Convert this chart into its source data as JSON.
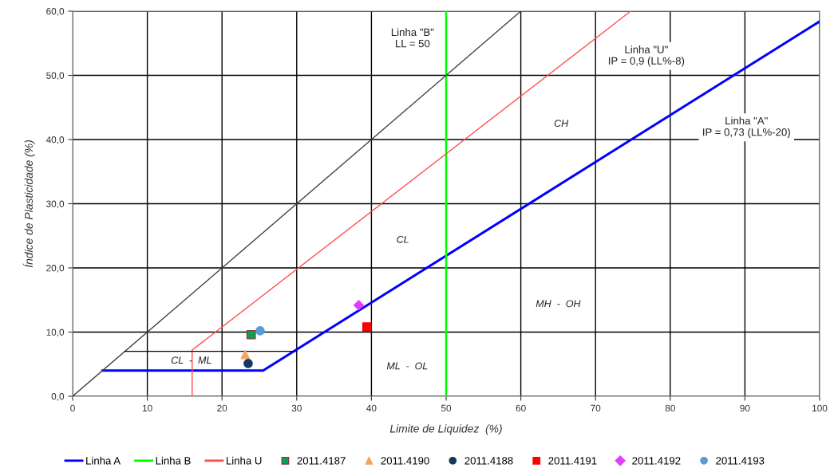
{
  "chart_data": {
    "type": "line",
    "xlabel": "Limite de Liquidez  (%)",
    "ylabel": "Índice de Plasticidade (%)",
    "xlim": [
      0,
      100
    ],
    "ylim": [
      0,
      60
    ],
    "xticks": [
      0,
      10,
      20,
      30,
      40,
      50,
      60,
      70,
      80,
      90,
      100
    ],
    "yticks": [
      {
        "value": 0,
        "label": "0,0"
      },
      {
        "value": 10,
        "label": "10,0"
      },
      {
        "value": 20,
        "label": "20,0"
      },
      {
        "value": 30,
        "label": "30,0"
      },
      {
        "value": 40,
        "label": "40,0"
      },
      {
        "value": 50,
        "label": "50,0"
      },
      {
        "value": 60,
        "label": "60,0"
      }
    ],
    "grid": true,
    "legend": "bottom",
    "series": [
      {
        "name": "Linha A",
        "color": "#0000ff",
        "x": [
          4,
          25.5,
          100
        ],
        "values": [
          4,
          4,
          58.4
        ]
      },
      {
        "name": "Linha B",
        "color": "#00ff00",
        "x": [
          50,
          50
        ],
        "values": [
          0,
          60
        ]
      },
      {
        "name": "Linha U",
        "color": "#ff5050",
        "x": [
          16,
          16,
          74.7
        ],
        "values": [
          0,
          7.2,
          60
        ]
      },
      {
        "color": "#404040",
        "x": [
          0,
          60
        ],
        "values": [
          0,
          60
        ]
      },
      {
        "color": "#000000",
        "x": [
          7,
          30
        ],
        "values": [
          7,
          7
        ]
      },
      {
        "name": "2011.4187",
        "type": "scatter",
        "marker": "square",
        "color": "#00a651",
        "x": [
          23.9
        ],
        "values": [
          9.6
        ]
      },
      {
        "name": "2011.4190",
        "type": "scatter",
        "marker": "triangle",
        "color": "#f4a460",
        "x": [
          23.1
        ],
        "values": [
          6.5
        ]
      },
      {
        "name": "2011.4188",
        "type": "scatter",
        "marker": "circle",
        "color": "#17375e",
        "x": [
          23.5
        ],
        "values": [
          5.1
        ]
      },
      {
        "name": "2011.4191",
        "type": "scatter",
        "marker": "square",
        "color": "#ff0000",
        "x": [
          39.4
        ],
        "values": [
          10.8
        ]
      },
      {
        "name": "2011.4192",
        "type": "scatter",
        "marker": "diamond",
        "color": "#e040fb",
        "x": [
          38.3
        ],
        "values": [
          14.2
        ]
      },
      {
        "name": "2011.4193",
        "type": "scatter",
        "marker": "circle",
        "color": "#5b9bd5",
        "x": [
          25.1
        ],
        "values": [
          10.2
        ]
      }
    ],
    "annotations": [
      "Linha \"B\"\nLL = 50",
      "Linha \"U\"\nIP = 0,9 (LL%-8)",
      "Linha \"A\"\nIP = 0,73 (LL%-20)",
      "CH",
      "CL",
      "MH  -  OH",
      "ML  -  OL",
      "CL  -  ML"
    ]
  }
}
